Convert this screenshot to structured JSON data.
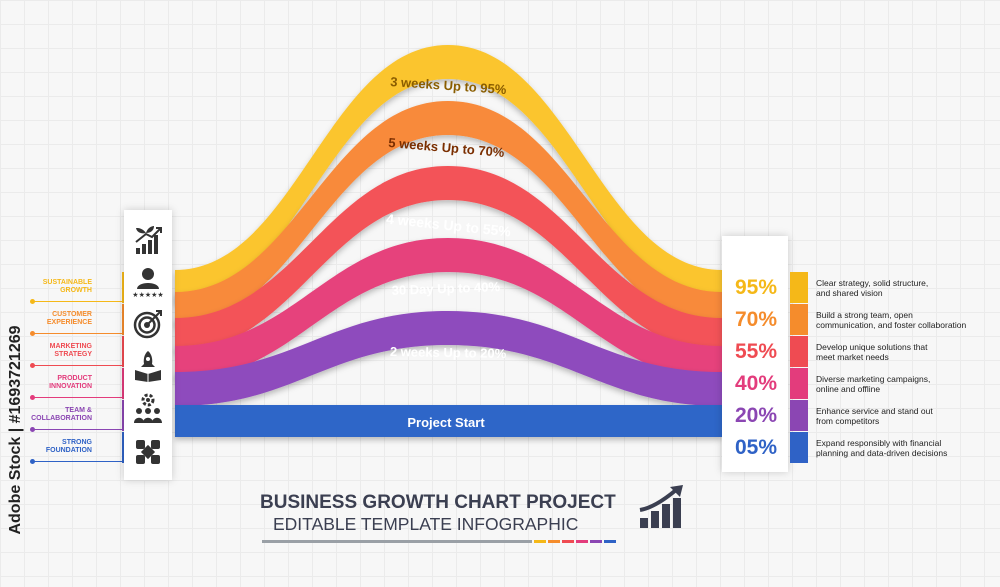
{
  "watermark": "Adobe Stock | #1693721269",
  "left_labels": [
    {
      "text": "SUSTAINABLE\nGROWTH",
      "color": "#f5b818"
    },
    {
      "text": "CUSTOMER\nEXPERIENCE",
      "color": "#f58c2c"
    },
    {
      "text": "MARKETING\nSTRATEGY",
      "color": "#ef4b52"
    },
    {
      "text": "PRODUCT\nINNOVATION",
      "color": "#e33c7c"
    },
    {
      "text": "TEAM &\nCOLLABORATION",
      "color": "#8b46b3"
    },
    {
      "text": "STRONG\nFOUNDATION",
      "color": "#2f62c6"
    }
  ],
  "icons": [
    "plant-growth-bar-chart-icon",
    "customer-rating-icon",
    "target-arrow-icon",
    "rocket-box-icon",
    "team-gear-icon",
    "teamwork-hands-icon"
  ],
  "bands": [
    {
      "label": "3 weeks  Up to 95%",
      "color": "#fbc52e"
    },
    {
      "label": "5 weeks  Up to 70%",
      "color": "#f88a3a"
    },
    {
      "label": "4 weeks  Up to 55%",
      "color": "#f35359"
    },
    {
      "label": "30 Day  Up to 40%",
      "color": "#e6427c"
    },
    {
      "label": "2 weeks  Up to 20%",
      "color": "#8e4cbd"
    },
    {
      "label": "Project Start",
      "color": "#2f66c8"
    }
  ],
  "results": [
    {
      "pct": "95%",
      "color": "#f5b818",
      "desc": "Clear strategy, solid structure,\nand shared vision"
    },
    {
      "pct": "70%",
      "color": "#f58c2c",
      "desc": "Build a strong team, open\ncommunication, and foster collaboration"
    },
    {
      "pct": "55%",
      "color": "#ef4b52",
      "desc": "Develop unique solutions that\nmeet market needs"
    },
    {
      "pct": "40%",
      "color": "#e33c7c",
      "desc": "Diverse marketing campaigns,\nonline and offline"
    },
    {
      "pct": "20%",
      "color": "#8b46b3",
      "desc": "Enhance service and stand out\nfrom competitors"
    },
    {
      "pct": "05%",
      "color": "#2f62c6",
      "desc": "Expand responsibly with financial\nplanning and data-driven decisions"
    }
  ],
  "title": {
    "line1": "BUSINESS GROWTH CHART PROJECT",
    "line2": "EDITABLE TEMPLATE INFOGRAPHIC",
    "bar_colors": [
      "#9aa0a6",
      "#f5b818",
      "#f58c2c",
      "#ef4b52",
      "#e33c7c",
      "#8b46b3",
      "#2f62c6"
    ]
  }
}
